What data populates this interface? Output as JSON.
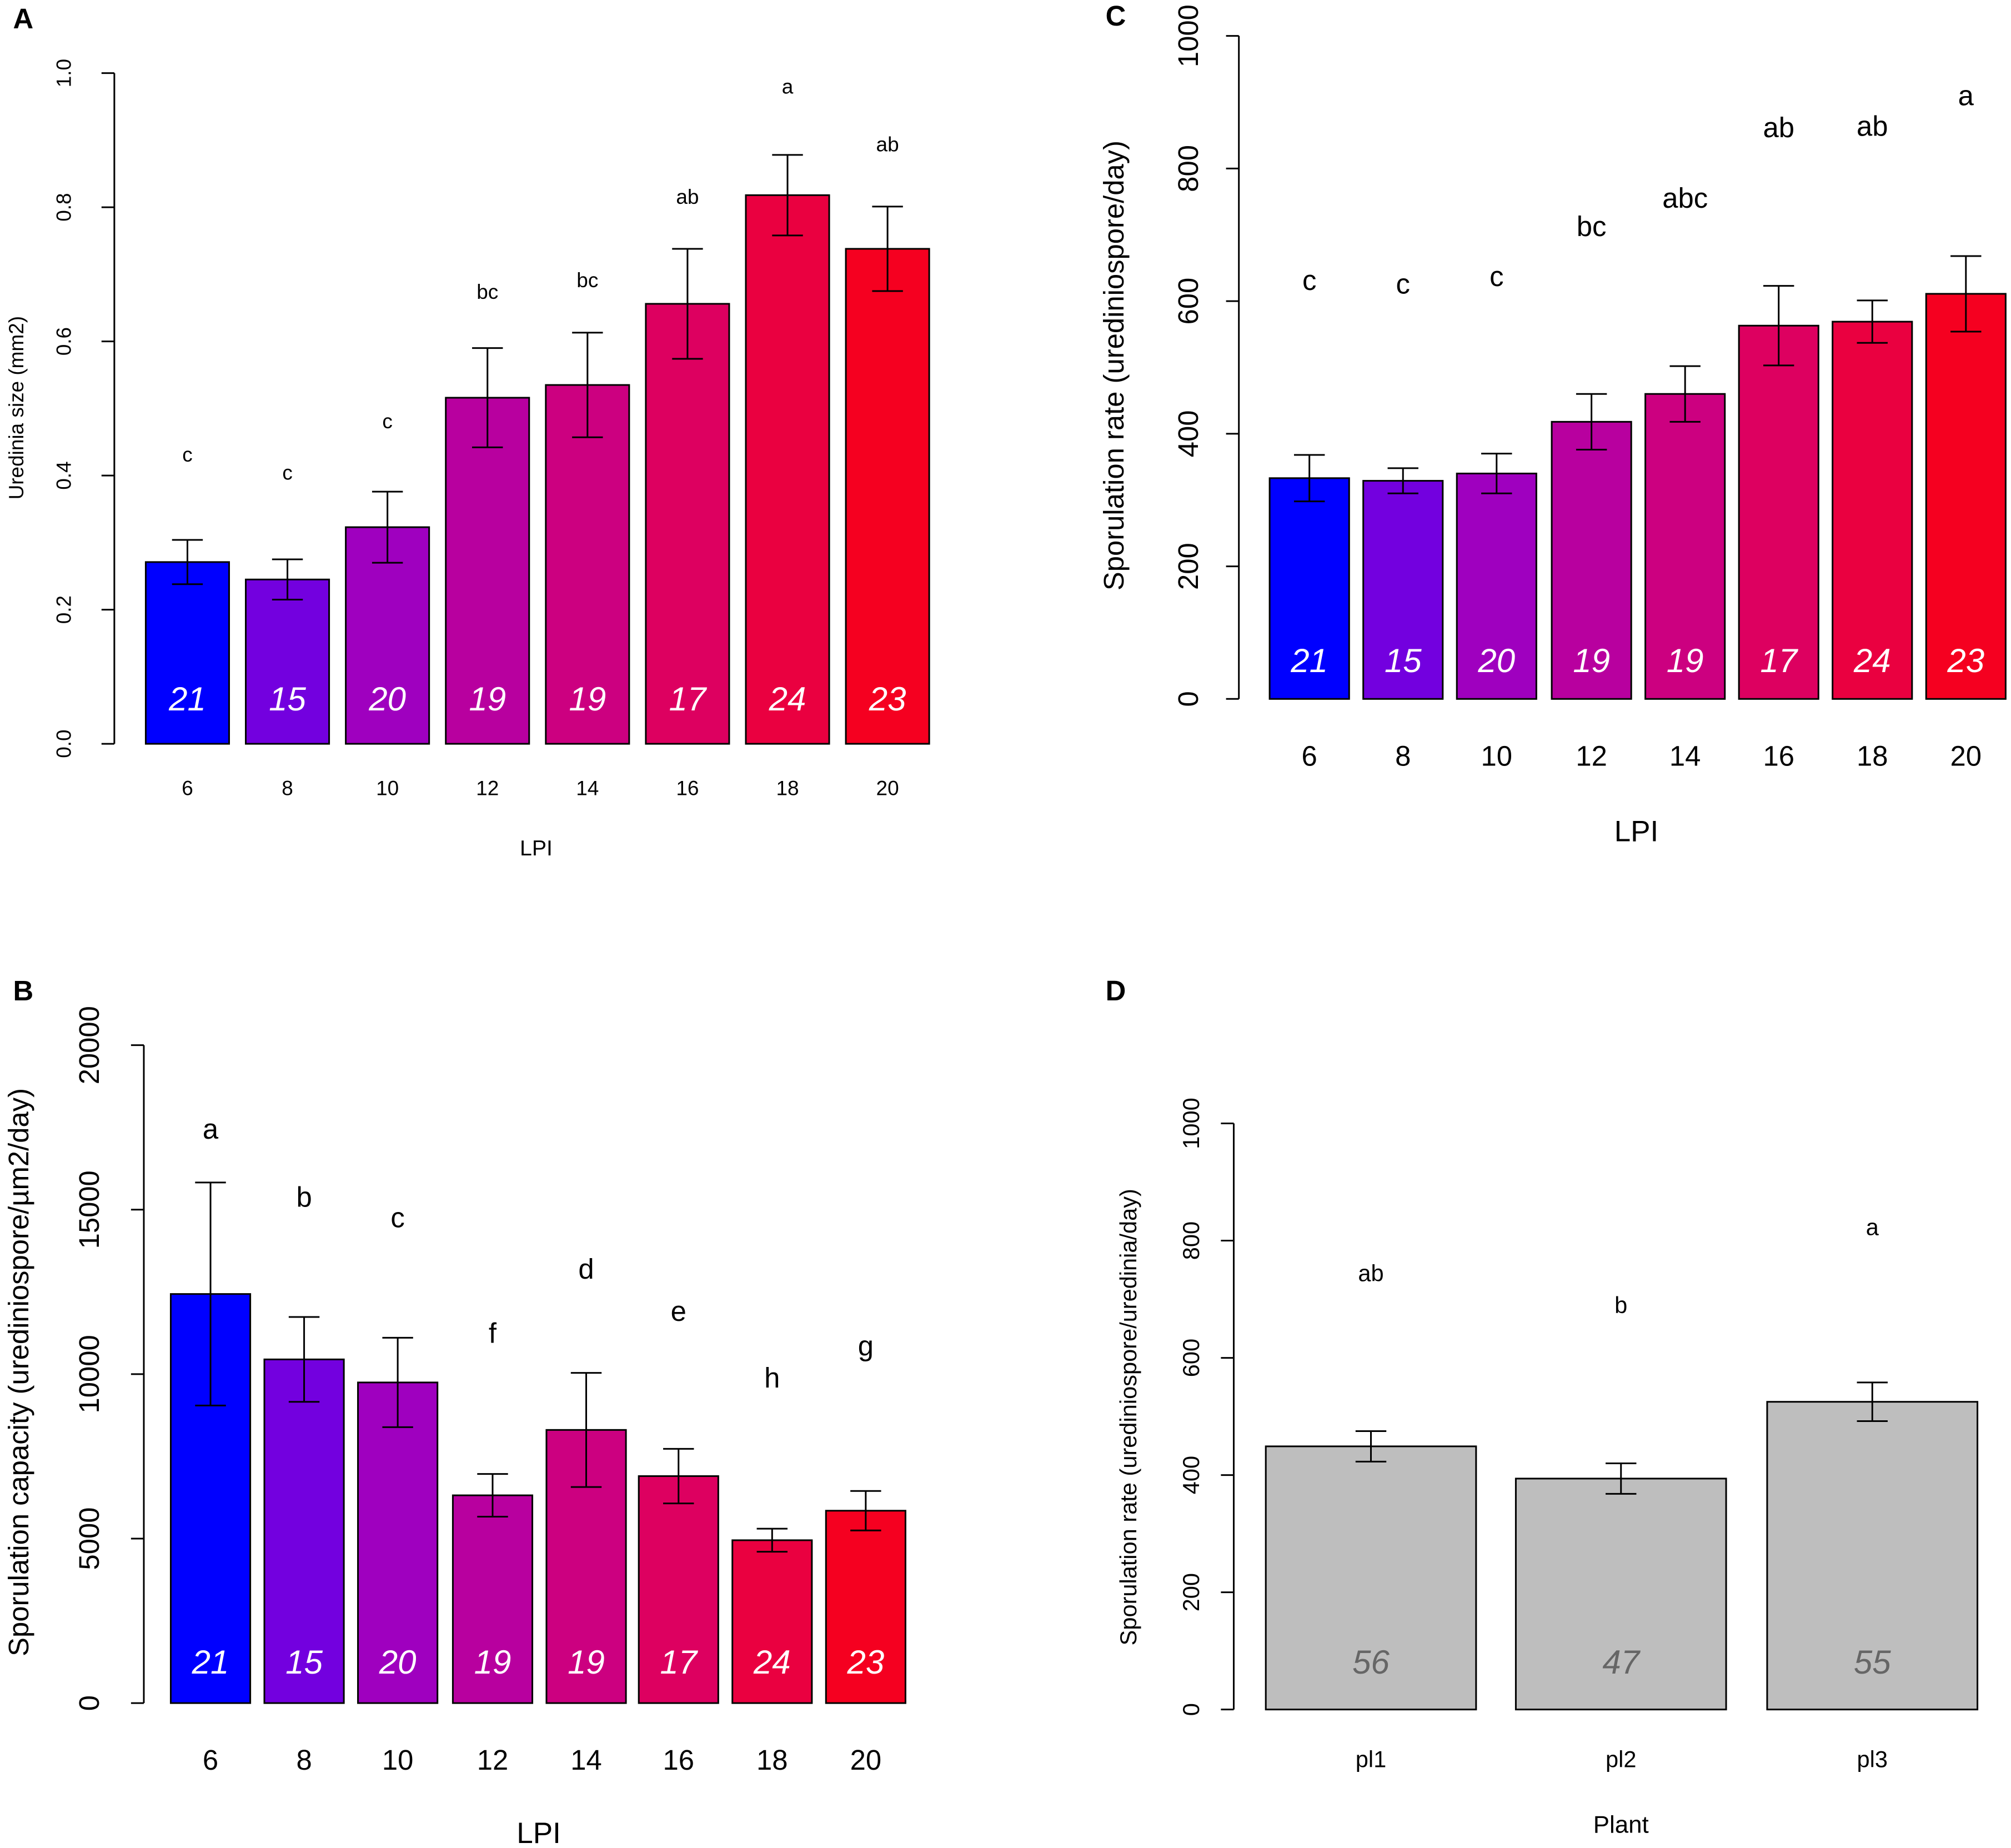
{
  "chart_data": [
    {
      "panel": "A",
      "type": "bar",
      "xlabel": "LPI",
      "ylabel": "Uredinia size (mm2)",
      "categories": [
        "6",
        "8",
        "10",
        "12",
        "14",
        "16",
        "18",
        "20"
      ],
      "values": [
        0.271,
        0.245,
        0.323,
        0.516,
        0.535,
        0.656,
        0.818,
        0.738
      ],
      "errors": [
        0.033,
        0.03,
        0.053,
        0.074,
        0.078,
        0.082,
        0.06,
        0.063
      ],
      "n": [
        "21",
        "15",
        "20",
        "19",
        "19",
        "17",
        "24",
        "23"
      ],
      "letters": [
        "c",
        "c",
        "c",
        "bc",
        "bc",
        "ab",
        "a",
        "ab"
      ],
      "ylim": [
        0,
        1.0
      ],
      "yticks": [
        "0.0",
        "0.2",
        "0.4",
        "0.6",
        "0.8",
        "1.0"
      ],
      "colors": [
        "#0000FF",
        "#7300DF",
        "#9F00BF",
        "#B8009F",
        "#CC0080",
        "#DD0060",
        "#EA0040",
        "#F50020"
      ]
    },
    {
      "panel": "C",
      "type": "bar",
      "xlabel": "LPI",
      "ylabel": "Sporulation rate (urediniospore/day)",
      "categories": [
        "6",
        "8",
        "10",
        "12",
        "14",
        "16",
        "18",
        "20"
      ],
      "values": [
        333,
        329,
        340,
        418,
        460,
        563,
        569,
        611
      ],
      "errors": [
        35,
        19,
        30,
        42,
        42,
        60,
        32,
        57
      ],
      "n": [
        "21",
        "15",
        "20",
        "19",
        "19",
        "17",
        "24",
        "23"
      ],
      "letters": [
        "c",
        "c",
        "c",
        "bc",
        "abc",
        "ab",
        "ab",
        "a"
      ],
      "ylim": [
        0,
        1000
      ],
      "yticks": [
        "0",
        "200",
        "400",
        "600",
        "800",
        "1000"
      ],
      "colors": [
        "#0000FF",
        "#7300DF",
        "#9F00BF",
        "#B8009F",
        "#CC0080",
        "#DD0060",
        "#EA0040",
        "#F50020"
      ]
    },
    {
      "panel": "B",
      "type": "bar",
      "xlabel": "LPI",
      "ylabel": "Sporulation capacity (urediniospore/µm2/day)",
      "categories": [
        "6",
        "8",
        "10",
        "12",
        "14",
        "16",
        "18",
        "20"
      ],
      "values": [
        12436,
        10448,
        9747,
        6316,
        8304,
        6900,
        4951,
        5848
      ],
      "errors": [
        3390,
        1290,
        1360,
        650,
        1735,
        830,
        350,
        600
      ],
      "n": [
        "21",
        "15",
        "20",
        "19",
        "19",
        "17",
        "24",
        "23"
      ],
      "letters": [
        "a",
        "b",
        "c",
        "f",
        "d",
        "e",
        "h",
        "g"
      ],
      "ylim": [
        0,
        20000
      ],
      "yticks": [
        "0",
        "5000",
        "10000",
        "15000",
        "20000"
      ],
      "colors": [
        "#0000FF",
        "#7300DF",
        "#9F00BF",
        "#B8009F",
        "#CC0080",
        "#DD0060",
        "#EA0040",
        "#F50020"
      ]
    },
    {
      "panel": "D",
      "type": "bar",
      "xlabel": "Plant",
      "ylabel": "Sporulation rate (urediniospore/uredinia/day)",
      "categories": [
        "pl1",
        "pl2",
        "pl3"
      ],
      "values": [
        449,
        394,
        525
      ],
      "errors": [
        26,
        26,
        33
      ],
      "n": [
        "56",
        "47",
        "55"
      ],
      "letters": [
        "ab",
        "b",
        "a"
      ],
      "ylim": [
        0,
        1000
      ],
      "yticks": [
        "0",
        "200",
        "400",
        "600",
        "800",
        "1000"
      ],
      "colors": [
        "#BEBEBE",
        "#BEBEBE",
        "#BEBEBE"
      ]
    }
  ]
}
